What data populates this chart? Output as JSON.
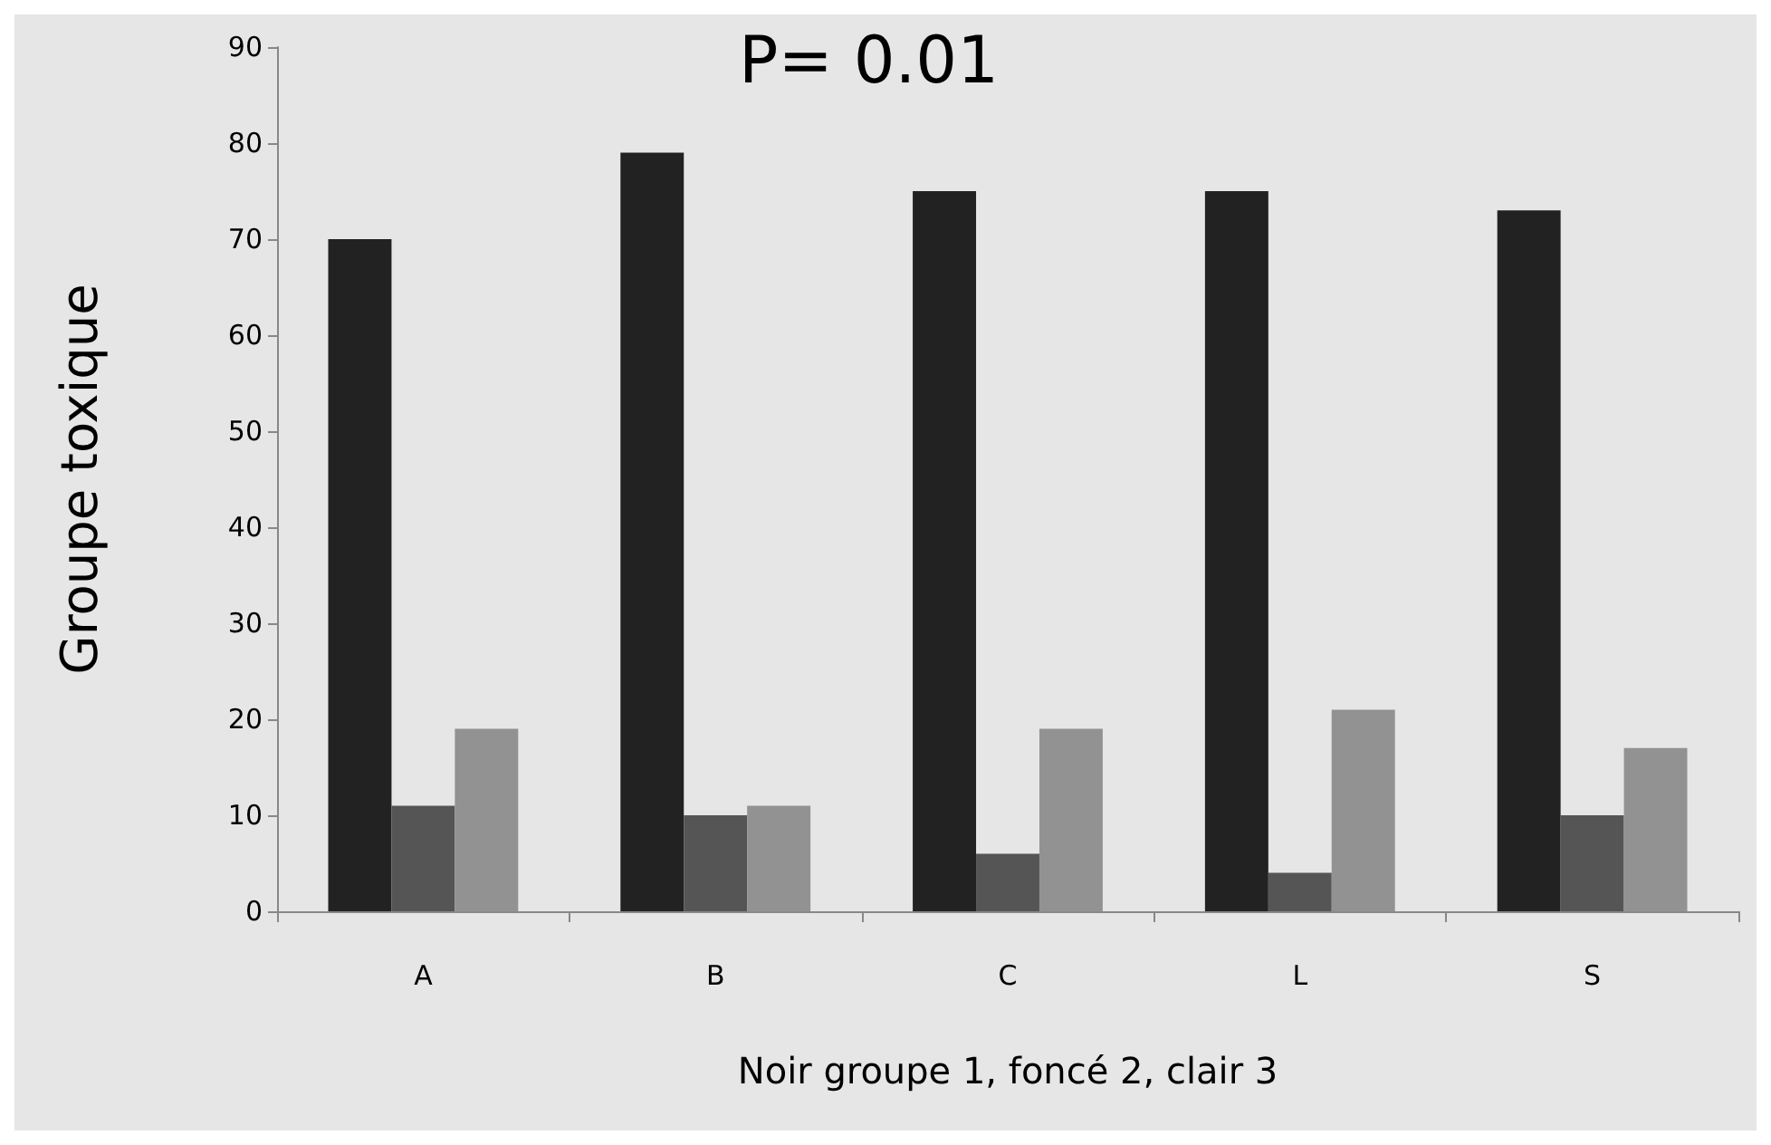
{
  "chart_data": {
    "type": "bar",
    "ylabel": "Groupe toxique",
    "xlabel": "Noir groupe 1, foncé 2, clair 3",
    "annotations": [
      "P= 0.01"
    ],
    "categories": [
      "A",
      "B",
      "C",
      "L",
      "S"
    ],
    "series": [
      {
        "color": "#222222",
        "values": [
          70,
          79,
          75,
          75,
          73
        ]
      },
      {
        "color": "#555555",
        "values": [
          11,
          10,
          6,
          4,
          10
        ]
      },
      {
        "color": "#929292",
        "values": [
          19,
          11,
          19,
          21,
          17
        ]
      }
    ],
    "ylim": [
      0,
      90
    ],
    "yticks": [
      0,
      10,
      20,
      30,
      40,
      50,
      60,
      70,
      80,
      90
    ],
    "grid": false
  }
}
